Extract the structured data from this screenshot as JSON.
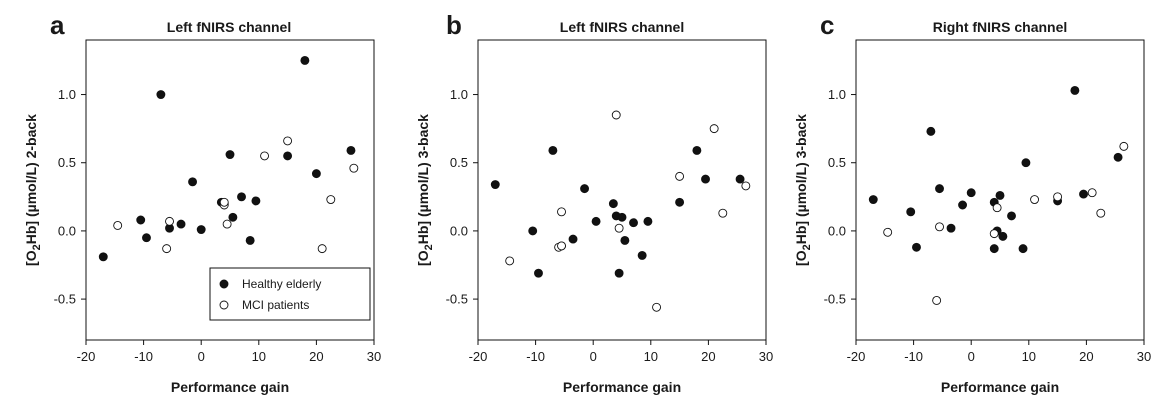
{
  "colors": {
    "healthy": "#111111",
    "mci": "#ffffff",
    "stroke": "#111111"
  },
  "legend": {
    "items": [
      {
        "label": "Healthy elderly",
        "marker": "filled"
      },
      {
        "label": "MCI patients",
        "marker": "open"
      }
    ]
  },
  "chart_data": [
    {
      "type": "scatter",
      "panel_letter": "a",
      "title": "Left fNIRS channel",
      "xlabel": "Performance gain",
      "ylabel_pre": "[O",
      "ylabel_sub": "2",
      "ylabel_post": "Hb] (µmol/L) 2-back",
      "xlim": [
        -20,
        30
      ],
      "ylim": [
        -0.8,
        1.4
      ],
      "xticks": [
        "-20",
        "-10",
        "0",
        "10",
        "20",
        "30"
      ],
      "yticks": [
        "-0.5",
        "0.0",
        "0.5",
        "1.0"
      ],
      "legend": "bottom-right",
      "series": [
        {
          "name": "Healthy elderly",
          "marker": "filled",
          "x": [
            -17,
            -10.5,
            -9.5,
            -7,
            -5.5,
            -3.5,
            -1.5,
            0,
            3.5,
            4,
            5,
            5.5,
            7,
            8.5,
            9.5,
            15,
            18,
            20,
            26
          ],
          "y": [
            -0.19,
            0.08,
            -0.05,
            1.0,
            0.02,
            0.05,
            0.36,
            0.01,
            0.21,
            0.2,
            0.56,
            0.1,
            0.25,
            -0.07,
            0.22,
            0.55,
            1.25,
            0.42,
            0.59
          ]
        },
        {
          "name": "MCI patients",
          "marker": "open",
          "x": [
            -14.5,
            -6,
            -5.5,
            4,
            4,
            4.5,
            11,
            15,
            21,
            22.5,
            26.5
          ],
          "y": [
            0.04,
            -0.13,
            0.07,
            0.19,
            0.21,
            0.05,
            0.55,
            0.66,
            -0.13,
            0.23,
            0.46
          ]
        }
      ]
    },
    {
      "type": "scatter",
      "panel_letter": "b",
      "title": "Left fNIRS channel",
      "xlabel": "Performance gain",
      "ylabel_pre": "[O",
      "ylabel_sub": "2",
      "ylabel_post": "Hb] (µmol/L) 3-back",
      "xlim": [
        -20,
        30
      ],
      "ylim": [
        -0.8,
        1.4
      ],
      "xticks": [
        "-20",
        "-10",
        "0",
        "10",
        "20",
        "30"
      ],
      "yticks": [
        "-0.5",
        "0.0",
        "0.5",
        "1.0"
      ],
      "series": [
        {
          "name": "Healthy elderly",
          "marker": "filled",
          "x": [
            -17,
            -10.5,
            -9.5,
            -7,
            -5.5,
            -3.5,
            -1.5,
            0.5,
            3.5,
            4,
            4.5,
            5.5,
            5,
            7,
            8.5,
            9.5,
            15,
            18,
            19.5,
            25.5
          ],
          "y": [
            0.34,
            0.0,
            -0.31,
            0.59,
            -0.11,
            -0.06,
            0.31,
            0.07,
            0.2,
            0.11,
            -0.31,
            -0.07,
            0.1,
            0.06,
            -0.18,
            0.07,
            0.21,
            0.59,
            0.38,
            0.38
          ]
        },
        {
          "name": "MCI patients",
          "marker": "open",
          "x": [
            -14.5,
            -6,
            -5.5,
            -5.5,
            4,
            4.5,
            11,
            15,
            21,
            22.5,
            26.5
          ],
          "y": [
            -0.22,
            -0.12,
            0.14,
            -0.11,
            0.85,
            0.02,
            -0.56,
            0.4,
            0.75,
            0.13,
            0.33
          ]
        }
      ]
    },
    {
      "type": "scatter",
      "panel_letter": "c",
      "title": "Right fNIRS channel",
      "xlabel": "Performance gain",
      "ylabel_pre": "[O",
      "ylabel_sub": "2",
      "ylabel_post": "Hb] (µmol/L) 3-back",
      "xlim": [
        -20,
        30
      ],
      "ylim": [
        -0.8,
        1.4
      ],
      "xticks": [
        "-20",
        "-10",
        "0",
        "10",
        "20",
        "30"
      ],
      "yticks": [
        "-0.5",
        "0.0",
        "0.5",
        "1.0"
      ],
      "series": [
        {
          "name": "Healthy elderly",
          "marker": "filled",
          "x": [
            -17,
            -10.5,
            -9.5,
            -7,
            -5.5,
            -3.5,
            -1.5,
            0,
            4,
            4,
            4.5,
            5,
            5.5,
            7,
            9,
            9.5,
            15,
            18,
            19.5,
            25.5
          ],
          "y": [
            0.23,
            0.14,
            -0.12,
            0.73,
            0.31,
            0.02,
            0.19,
            0.28,
            0.21,
            -0.13,
            0.0,
            0.26,
            -0.04,
            0.11,
            -0.13,
            0.5,
            0.22,
            1.03,
            0.27,
            0.54
          ]
        },
        {
          "name": "MCI patients",
          "marker": "open",
          "x": [
            -14.5,
            -6,
            -5.5,
            4,
            4.5,
            11,
            15,
            21,
            22.5,
            26.5
          ],
          "y": [
            -0.01,
            -0.51,
            0.03,
            -0.02,
            0.17,
            0.23,
            0.25,
            0.28,
            0.13,
            0.62
          ]
        }
      ]
    }
  ]
}
